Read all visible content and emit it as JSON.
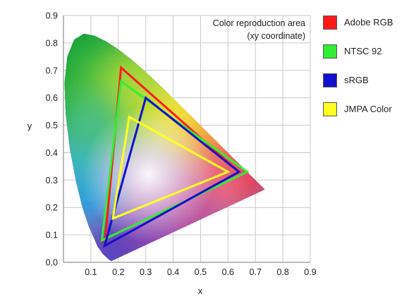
{
  "chart_data": {
    "type": "scatter",
    "title": "Color reproduction area",
    "subtitle": "(xy coordinate)",
    "xlabel": "x",
    "ylabel": "y",
    "xlim": [
      0,
      0.9
    ],
    "ylim": [
      0,
      0.9
    ],
    "xticks": [
      "0.1",
      "0.2",
      "0.3",
      "0.4",
      "0.5",
      "0.6",
      "0.7",
      "0.8",
      "0.9"
    ],
    "yticks": [
      "0.0",
      "0.1",
      "0.2",
      "0.3",
      "0.4",
      "0.5",
      "0.6",
      "0.7",
      "0.8",
      "0.9"
    ],
    "grid": true,
    "legend_position": "right",
    "spectral_locus": [
      [
        0.175,
        0.005
      ],
      [
        0.1741,
        0.005
      ],
      [
        0.1666,
        0.0089
      ],
      [
        0.144,
        0.0297
      ],
      [
        0.1241,
        0.0578
      ],
      [
        0.0913,
        0.1327
      ],
      [
        0.0687,
        0.2007
      ],
      [
        0.0454,
        0.295
      ],
      [
        0.0235,
        0.4127
      ],
      [
        0.0082,
        0.5384
      ],
      [
        0.0039,
        0.6548
      ],
      [
        0.0139,
        0.7502
      ],
      [
        0.0389,
        0.812
      ],
      [
        0.0743,
        0.8338
      ],
      [
        0.1142,
        0.8262
      ],
      [
        0.1547,
        0.8059
      ],
      [
        0.1929,
        0.7816
      ],
      [
        0.2296,
        0.7543
      ],
      [
        0.2658,
        0.7243
      ],
      [
        0.3016,
        0.6923
      ],
      [
        0.3373,
        0.6589
      ],
      [
        0.3731,
        0.6245
      ],
      [
        0.4087,
        0.5896
      ],
      [
        0.4441,
        0.5547
      ],
      [
        0.4788,
        0.5202
      ],
      [
        0.5125,
        0.4866
      ],
      [
        0.5448,
        0.4544
      ],
      [
        0.5752,
        0.4242
      ],
      [
        0.6029,
        0.3965
      ],
      [
        0.627,
        0.3725
      ],
      [
        0.6482,
        0.3514
      ],
      [
        0.6658,
        0.334
      ],
      [
        0.6915,
        0.3083
      ],
      [
        0.7347,
        0.2653
      ]
    ],
    "series": [
      {
        "name": "Adobe RGB",
        "color": "#ff1a1a",
        "points": [
          [
            0.64,
            0.33
          ],
          [
            0.21,
            0.71
          ],
          [
            0.15,
            0.06
          ]
        ]
      },
      {
        "name": "NTSC 92",
        "color": "#33ee33",
        "points": [
          [
            0.67,
            0.33
          ],
          [
            0.21,
            0.66
          ],
          [
            0.14,
            0.08
          ]
        ]
      },
      {
        "name": "sRGB",
        "color": "#1111cc",
        "points": [
          [
            0.64,
            0.33
          ],
          [
            0.3,
            0.6
          ],
          [
            0.15,
            0.06
          ]
        ]
      },
      {
        "name": "JMPA Color",
        "color": "#ffff22",
        "points": [
          [
            0.6,
            0.33
          ],
          [
            0.24,
            0.53
          ],
          [
            0.18,
            0.16
          ]
        ]
      }
    ]
  }
}
